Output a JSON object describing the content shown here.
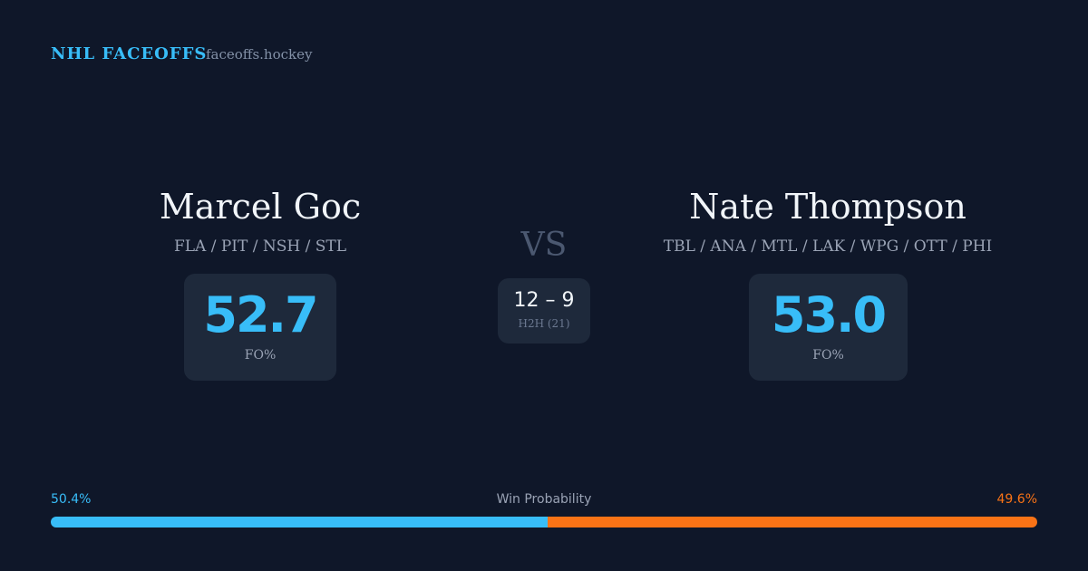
{
  "header": {
    "brand": "NHL FACEOFFS",
    "site": "faceoffs.hockey"
  },
  "players": [
    {
      "name": "Marcel Goc",
      "teams": "FLA / PIT / NSH / STL",
      "fo_pct": "52.7",
      "fo_label": "FO%"
    },
    {
      "name": "Nate Thompson",
      "teams": "TBL / ANA / MTL / LAK / WPG / OTT / PHI",
      "fo_pct": "53.0",
      "fo_label": "FO%"
    }
  ],
  "versus": "VS",
  "head_to_head": {
    "score": "12 – 9",
    "label": "H2H (21)"
  },
  "win_probability": {
    "title": "Win Probability",
    "left": {
      "value": 50.4,
      "label": "50.4%",
      "color": "#38bdf8"
    },
    "right": {
      "value": 49.6,
      "label": "49.6%",
      "color": "#f97316"
    }
  }
}
